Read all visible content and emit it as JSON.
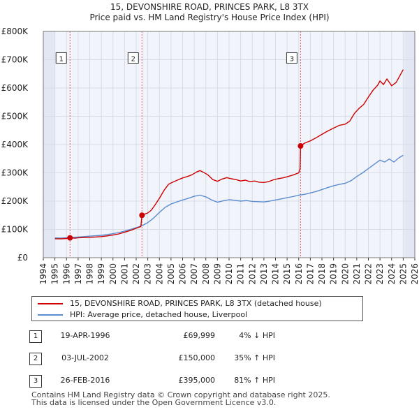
{
  "title_line1": "15, DEVONSHIRE ROAD, PRINCES PARK, L8 3TX",
  "title_line2": "Price paid vs. HM Land Registry's House Price Index (HPI)",
  "colors": {
    "property": "#cc0000",
    "hpi": "#5b8ccf",
    "grid": "#d6dbe6",
    "plot_bg": "#f2f4fb",
    "shade": "#e3e7f3",
    "marker_line": "#e06060"
  },
  "chart_data": {
    "type": "line",
    "title": "15, DEVONSHIRE ROAD, PRINCES PARK, L8 3TX — Price paid vs. HM Land Registry's House Price Index (HPI)",
    "xlabel": "",
    "ylabel": "",
    "xlim": [
      1994,
      2026
    ],
    "ylim": [
      0,
      800000
    ],
    "x_ticks": [
      "1994",
      "1995",
      "1996",
      "1997",
      "1998",
      "1999",
      "2000",
      "2001",
      "2002",
      "2003",
      "2004",
      "2005",
      "2006",
      "2007",
      "2008",
      "2009",
      "2010",
      "2011",
      "2012",
      "2013",
      "2014",
      "2015",
      "2016",
      "2017",
      "2018",
      "2019",
      "2020",
      "2021",
      "2022",
      "2023",
      "2024",
      "2025",
      "2026"
    ],
    "y_ticks": [
      {
        "value": 0,
        "label": "£0"
      },
      {
        "value": 100000,
        "label": "£100K"
      },
      {
        "value": 200000,
        "label": "£200K"
      },
      {
        "value": 300000,
        "label": "£300K"
      },
      {
        "value": 400000,
        "label": "£400K"
      },
      {
        "value": 500000,
        "label": "£500K"
      },
      {
        "value": 600000,
        "label": "£600K"
      },
      {
        "value": 700000,
        "label": "£700K"
      },
      {
        "value": 800000,
        "label": "£800K"
      }
    ],
    "shaded_ranges": [
      [
        1994,
        1995
      ],
      [
        2025.1,
        2026
      ]
    ],
    "series": [
      {
        "name": "15, DEVONSHIRE ROAD, PRINCES PARK, L8 3TX (detached house)",
        "color": "#cc0000",
        "points": [
          [
            1995.0,
            67000
          ],
          [
            1995.5,
            66500
          ],
          [
            1996.0,
            68000
          ],
          [
            1996.3,
            69999
          ],
          [
            1996.7,
            69000
          ],
          [
            1997.0,
            70000
          ],
          [
            1997.5,
            71500
          ],
          [
            1998.0,
            72000
          ],
          [
            1998.5,
            73000
          ],
          [
            1999.0,
            74500
          ],
          [
            1999.5,
            77000
          ],
          [
            2000.0,
            80000
          ],
          [
            2000.5,
            84000
          ],
          [
            2001.0,
            90000
          ],
          [
            2001.5,
            96000
          ],
          [
            2002.0,
            104000
          ],
          [
            2002.4,
            110000
          ],
          [
            2002.5,
            150000
          ],
          [
            2002.8,
            155000
          ],
          [
            2003.0,
            158000
          ],
          [
            2003.3,
            168000
          ],
          [
            2003.6,
            185000
          ],
          [
            2004.0,
            210000
          ],
          [
            2004.4,
            238000
          ],
          [
            2004.8,
            260000
          ],
          [
            2005.2,
            268000
          ],
          [
            2005.6,
            275000
          ],
          [
            2006.0,
            282000
          ],
          [
            2006.4,
            287000
          ],
          [
            2006.8,
            293000
          ],
          [
            2007.2,
            303000
          ],
          [
            2007.5,
            308000
          ],
          [
            2007.8,
            302000
          ],
          [
            2008.2,
            292000
          ],
          [
            2008.6,
            276000
          ],
          [
            2009.0,
            270000
          ],
          [
            2009.4,
            278000
          ],
          [
            2009.8,
            283000
          ],
          [
            2010.2,
            279000
          ],
          [
            2010.6,
            276000
          ],
          [
            2011.0,
            271000
          ],
          [
            2011.4,
            274000
          ],
          [
            2011.8,
            269000
          ],
          [
            2012.2,
            271000
          ],
          [
            2012.6,
            267000
          ],
          [
            2013.0,
            266000
          ],
          [
            2013.4,
            269000
          ],
          [
            2013.8,
            275000
          ],
          [
            2014.2,
            279000
          ],
          [
            2014.6,
            282000
          ],
          [
            2015.0,
            286000
          ],
          [
            2015.5,
            292000
          ],
          [
            2016.0,
            300000
          ],
          [
            2016.12,
            315000
          ],
          [
            2016.16,
            395000
          ],
          [
            2016.5,
            405000
          ],
          [
            2017.0,
            413000
          ],
          [
            2017.5,
            424000
          ],
          [
            2018.0,
            436000
          ],
          [
            2018.5,
            448000
          ],
          [
            2019.0,
            458000
          ],
          [
            2019.5,
            468000
          ],
          [
            2020.0,
            472000
          ],
          [
            2020.4,
            483000
          ],
          [
            2020.8,
            510000
          ],
          [
            2021.2,
            528000
          ],
          [
            2021.6,
            542000
          ],
          [
            2022.0,
            568000
          ],
          [
            2022.4,
            592000
          ],
          [
            2022.8,
            610000
          ],
          [
            2023.0,
            625000
          ],
          [
            2023.3,
            612000
          ],
          [
            2023.6,
            632000
          ],
          [
            2024.0,
            608000
          ],
          [
            2024.4,
            620000
          ],
          [
            2024.8,
            650000
          ],
          [
            2025.0,
            665000
          ]
        ]
      },
      {
        "name": "HPI: Average price, detached house, Liverpool",
        "color": "#5b8ccf",
        "points": [
          [
            1995.0,
            70000
          ],
          [
            1995.5,
            69500
          ],
          [
            1996.0,
            70500
          ],
          [
            1996.5,
            72000
          ],
          [
            1997.0,
            73000
          ],
          [
            1997.5,
            74500
          ],
          [
            1998.0,
            76000
          ],
          [
            1998.5,
            77500
          ],
          [
            1999.0,
            79000
          ],
          [
            1999.5,
            81500
          ],
          [
            2000.0,
            85000
          ],
          [
            2000.5,
            89000
          ],
          [
            2001.0,
            94000
          ],
          [
            2001.5,
            100000
          ],
          [
            2002.0,
            106000
          ],
          [
            2002.5,
            113000
          ],
          [
            2003.0,
            124000
          ],
          [
            2003.5,
            140000
          ],
          [
            2004.0,
            160000
          ],
          [
            2004.5,
            178000
          ],
          [
            2005.0,
            190000
          ],
          [
            2005.5,
            197000
          ],
          [
            2006.0,
            204000
          ],
          [
            2006.5,
            210000
          ],
          [
            2007.0,
            217000
          ],
          [
            2007.5,
            221000
          ],
          [
            2008.0,
            215000
          ],
          [
            2008.5,
            204000
          ],
          [
            2009.0,
            196000
          ],
          [
            2009.5,
            201000
          ],
          [
            2010.0,
            205000
          ],
          [
            2010.5,
            203000
          ],
          [
            2011.0,
            200000
          ],
          [
            2011.5,
            202000
          ],
          [
            2012.0,
            199000
          ],
          [
            2012.5,
            198000
          ],
          [
            2013.0,
            197000
          ],
          [
            2013.5,
            200000
          ],
          [
            2014.0,
            204000
          ],
          [
            2014.5,
            208000
          ],
          [
            2015.0,
            212000
          ],
          [
            2015.5,
            216000
          ],
          [
            2016.0,
            221000
          ],
          [
            2016.5,
            224000
          ],
          [
            2017.0,
            229000
          ],
          [
            2017.5,
            234000
          ],
          [
            2018.0,
            241000
          ],
          [
            2018.5,
            248000
          ],
          [
            2019.0,
            254000
          ],
          [
            2019.5,
            259000
          ],
          [
            2020.0,
            263000
          ],
          [
            2020.5,
            272000
          ],
          [
            2021.0,
            287000
          ],
          [
            2021.5,
            300000
          ],
          [
            2022.0,
            315000
          ],
          [
            2022.5,
            330000
          ],
          [
            2023.0,
            345000
          ],
          [
            2023.4,
            338000
          ],
          [
            2023.8,
            349000
          ],
          [
            2024.2,
            338000
          ],
          [
            2024.6,
            352000
          ],
          [
            2025.0,
            362000
          ]
        ]
      }
    ],
    "annotations": [
      {
        "label": "1",
        "x": 1996.3,
        "y": 69999,
        "box_value": 705000
      },
      {
        "label": "2",
        "x": 2002.5,
        "y": 150000,
        "box_value": 705000
      },
      {
        "label": "3",
        "x": 2016.16,
        "y": 395000,
        "box_value": 705000
      }
    ]
  },
  "legend": {
    "property_label": "15, DEVONSHIRE ROAD, PRINCES PARK, L8 3TX (detached house)",
    "hpi_label": "HPI: Average price, detached house, Liverpool"
  },
  "transactions": [
    {
      "num": "1",
      "date": "19-APR-1996",
      "price": "£69,999",
      "hpi": "4% ↓ HPI"
    },
    {
      "num": "2",
      "date": "03-JUL-2002",
      "price": "£150,000",
      "hpi": "35% ↑ HPI"
    },
    {
      "num": "3",
      "date": "26-FEB-2016",
      "price": "£395,000",
      "hpi": "81% ↑ HPI"
    }
  ],
  "footer": {
    "line1": "Contains HM Land Registry data © Crown copyright and database right 2025.",
    "line2": "This data is licensed under the Open Government Licence v3.0."
  }
}
